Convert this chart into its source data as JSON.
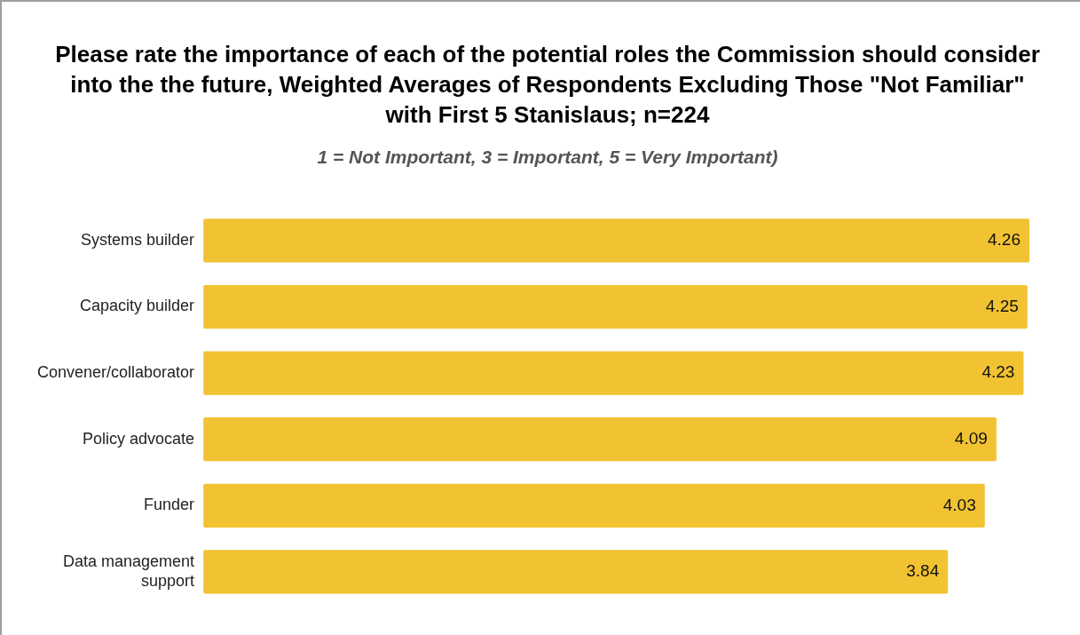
{
  "chart_data": {
    "type": "bar",
    "orientation": "horizontal",
    "title": "Please rate the importance of each of the potential roles the Commission should consider into the the future, Weighted Averages of Respondents Excluding Those \"Not Familiar\" with First 5 Stanislaus; n=224",
    "subtitle": "1 = Not Important, 3 = Important, 5 = Very Important)",
    "categories": [
      "Systems builder",
      "Capacity builder",
      "Convener/collaborator",
      "Policy advocate",
      "Funder",
      "Data management support"
    ],
    "values": [
      4.26,
      4.25,
      4.23,
      4.09,
      4.03,
      3.84
    ],
    "color": "#f1c232",
    "data_labels": true,
    "legend": false
  }
}
